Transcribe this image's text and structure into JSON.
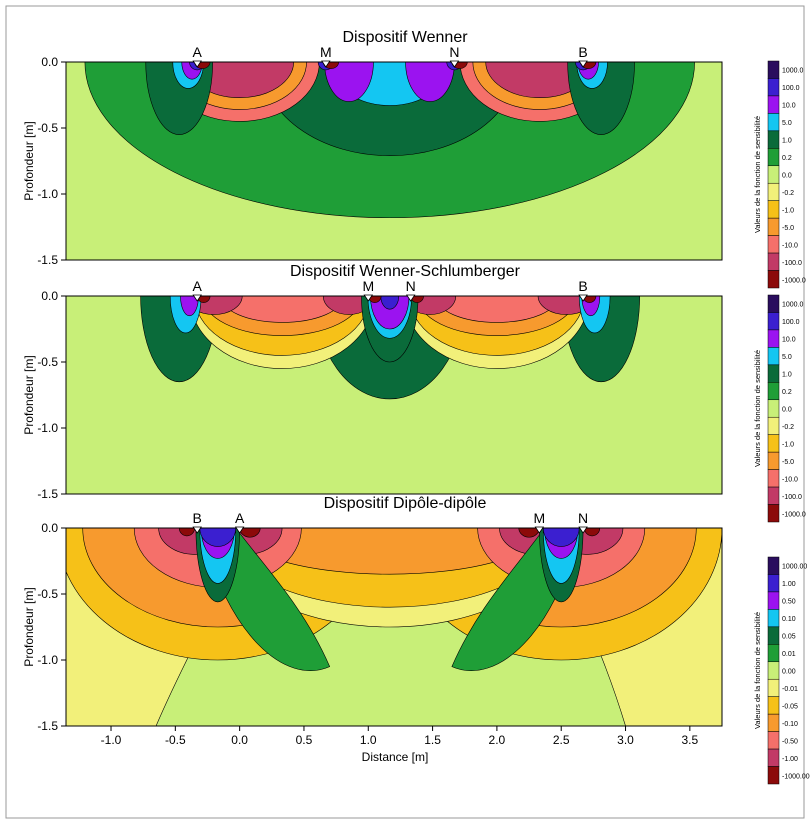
{
  "chart_data": [
    {
      "type": "heatmap",
      "title": "Dispositif Wenner",
      "ylabel": "Profondeur [m]",
      "xlim": [
        -1.35,
        3.75
      ],
      "ylim": [
        -1.5,
        0.0
      ],
      "yticks": [
        "0.0",
        "-0.5",
        "-1.0",
        "-1.5"
      ],
      "electrodes": [
        {
          "label": "A",
          "x": -0.33
        },
        {
          "label": "M",
          "x": 0.67
        },
        {
          "label": "N",
          "x": 1.67
        },
        {
          "label": "B",
          "x": 2.67
        }
      ],
      "colorbar": {
        "label": "Valeurs de la fonction de sensibilité",
        "levels": [
          "1000.0",
          "100.0",
          "10.0",
          "5.0",
          "1.0",
          "0.2",
          "0.0",
          "-0.2",
          "-1.0",
          "-5.0",
          "-10.0",
          "-100.0",
          "-1000.0"
        ],
        "colors": [
          "#2a0d5e",
          "#3b1fd0",
          "#9b13f0",
          "#14c6f2",
          "#0a6b3a",
          "#1f9e37",
          "#c8ef78",
          "#f2f07a",
          "#f6c118",
          "#f79a2e",
          "#f5706a",
          "#c23a66",
          "#8c0a0a"
        ]
      }
    },
    {
      "type": "heatmap",
      "title": "Dispositif Wenner-Schlumberger",
      "ylabel": "Profondeur [m]",
      "xlim": [
        -1.35,
        3.75
      ],
      "ylim": [
        -1.5,
        0.0
      ],
      "yticks": [
        "0.0",
        "-0.5",
        "-1.0",
        "-1.5"
      ],
      "electrodes": [
        {
          "label": "A",
          "x": -0.33
        },
        {
          "label": "M",
          "x": 1.0
        },
        {
          "label": "N",
          "x": 1.33
        },
        {
          "label": "B",
          "x": 2.67
        }
      ],
      "colorbar": {
        "label": "Valeurs de la fonction de sensibilité",
        "levels": [
          "1000.0",
          "100.0",
          "10.0",
          "5.0",
          "1.0",
          "0.2",
          "0.0",
          "-0.2",
          "-1.0",
          "-5.0",
          "-10.0",
          "-100.0",
          "-1000.0"
        ],
        "colors": [
          "#2a0d5e",
          "#3b1fd0",
          "#9b13f0",
          "#14c6f2",
          "#0a6b3a",
          "#1f9e37",
          "#c8ef78",
          "#f2f07a",
          "#f6c118",
          "#f79a2e",
          "#f5706a",
          "#c23a66",
          "#8c0a0a"
        ]
      }
    },
    {
      "type": "heatmap",
      "title": "Dispositif Dipôle-dipôle",
      "ylabel": "Profondeur [m]",
      "xlabel": "Distance [m]",
      "xlim": [
        -1.35,
        3.75
      ],
      "ylim": [
        -1.5,
        0.0
      ],
      "yticks": [
        "0.0",
        "-0.5",
        "-1.0",
        "-1.5"
      ],
      "xticks": [
        "-1.0",
        "-0.5",
        "0.0",
        "0.5",
        "1.0",
        "1.5",
        "2.0",
        "2.5",
        "3.0",
        "3.5"
      ],
      "electrodes": [
        {
          "label": "B",
          "x": -0.33
        },
        {
          "label": "A",
          "x": 0.0
        },
        {
          "label": "M",
          "x": 2.33
        },
        {
          "label": "N",
          "x": 2.67
        }
      ],
      "colorbar": {
        "label": "Valeurs de la fonction de sensibilité",
        "levels": [
          "1000.00",
          "1.00",
          "0.50",
          "0.10",
          "0.05",
          "0.01",
          "0.00",
          "-0.01",
          "-0.05",
          "-0.10",
          "-0.50",
          "-1.00",
          "-1000.00"
        ],
        "colors": [
          "#2a0d5e",
          "#3b1fd0",
          "#9b13f0",
          "#14c6f2",
          "#0a6b3a",
          "#1f9e37",
          "#c8ef78",
          "#f2f07a",
          "#f6c118",
          "#f79a2e",
          "#f5706a",
          "#c23a66",
          "#8c0a0a"
        ]
      }
    }
  ]
}
